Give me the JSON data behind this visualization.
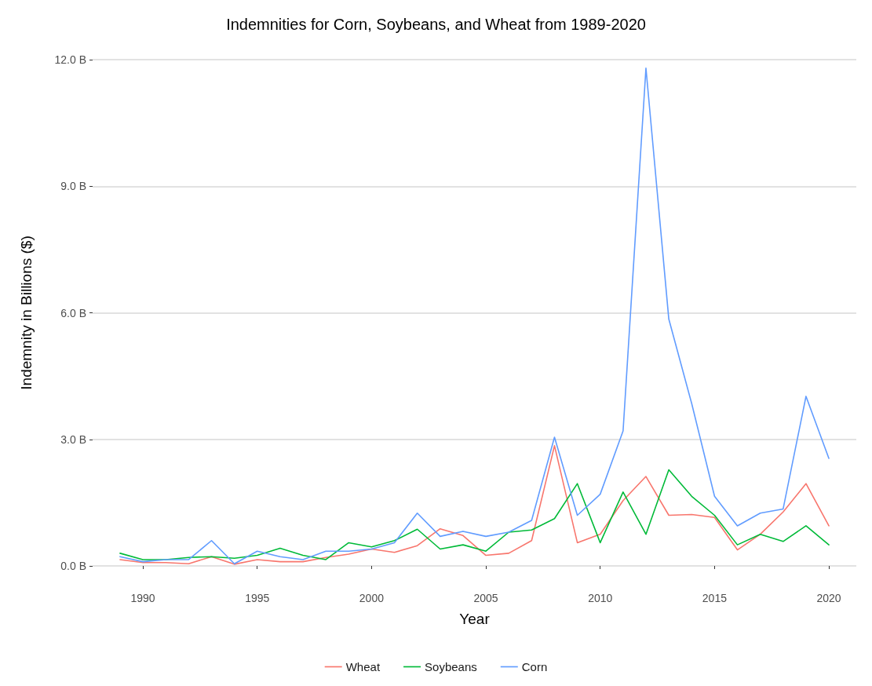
{
  "chart_data": {
    "type": "line",
    "title": "Indemnities for Corn, Soybeans, and Wheat from 1989-2020",
    "xlabel": "Year",
    "ylabel": "Indemnity in Billions ($)",
    "x": [
      1989,
      1990,
      1991,
      1992,
      1993,
      1994,
      1995,
      1996,
      1997,
      1998,
      1999,
      2000,
      2001,
      2002,
      2003,
      2004,
      2005,
      2006,
      2007,
      2008,
      2009,
      2010,
      2011,
      2012,
      2013,
      2014,
      2015,
      2016,
      2017,
      2018,
      2019,
      2020
    ],
    "series": [
      {
        "name": "Wheat",
        "color": "#f8766d",
        "values": [
          0.15,
          0.08,
          0.08,
          0.05,
          0.22,
          0.04,
          0.15,
          0.1,
          0.1,
          0.2,
          0.28,
          0.4,
          0.32,
          0.48,
          0.88,
          0.72,
          0.25,
          0.3,
          0.6,
          2.85,
          0.55,
          0.75,
          1.55,
          2.12,
          1.2,
          1.22,
          1.15,
          0.38,
          0.75,
          1.28,
          1.95,
          0.95
        ]
      },
      {
        "name": "Soybeans",
        "color": "#00ba38",
        "values": [
          0.3,
          0.15,
          0.15,
          0.2,
          0.22,
          0.18,
          0.25,
          0.42,
          0.25,
          0.15,
          0.55,
          0.45,
          0.6,
          0.87,
          0.4,
          0.5,
          0.35,
          0.8,
          0.85,
          1.12,
          1.95,
          0.55,
          1.75,
          0.75,
          2.28,
          1.65,
          1.2,
          0.5,
          0.75,
          0.58,
          0.95,
          0.5
        ]
      },
      {
        "name": "Corn",
        "color": "#619cff",
        "values": [
          0.22,
          0.1,
          0.15,
          0.15,
          0.6,
          0.05,
          0.35,
          0.22,
          0.15,
          0.35,
          0.35,
          0.4,
          0.55,
          1.25,
          0.7,
          0.82,
          0.7,
          0.8,
          1.08,
          3.05,
          1.2,
          1.7,
          3.2,
          11.8,
          5.85,
          3.85,
          1.65,
          0.95,
          1.25,
          1.35,
          4.02,
          2.55
        ]
      }
    ],
    "xlim": [
      1987.8,
      2021.2
    ],
    "xticks": [
      1990,
      1995,
      2000,
      2005,
      2010,
      2015,
      2020
    ],
    "ylim": [
      0,
      12
    ],
    "yticks": [
      {
        "value": 0,
        "label": "0.0 B"
      },
      {
        "value": 3,
        "label": "3.0 B"
      },
      {
        "value": 6,
        "label": "6.0 B"
      },
      {
        "value": 9,
        "label": "9.0 B"
      },
      {
        "value": 12,
        "label": "12.0 B"
      }
    ],
    "grid": "y",
    "legend": "bottom",
    "marker": "none",
    "line_style": "solid"
  }
}
